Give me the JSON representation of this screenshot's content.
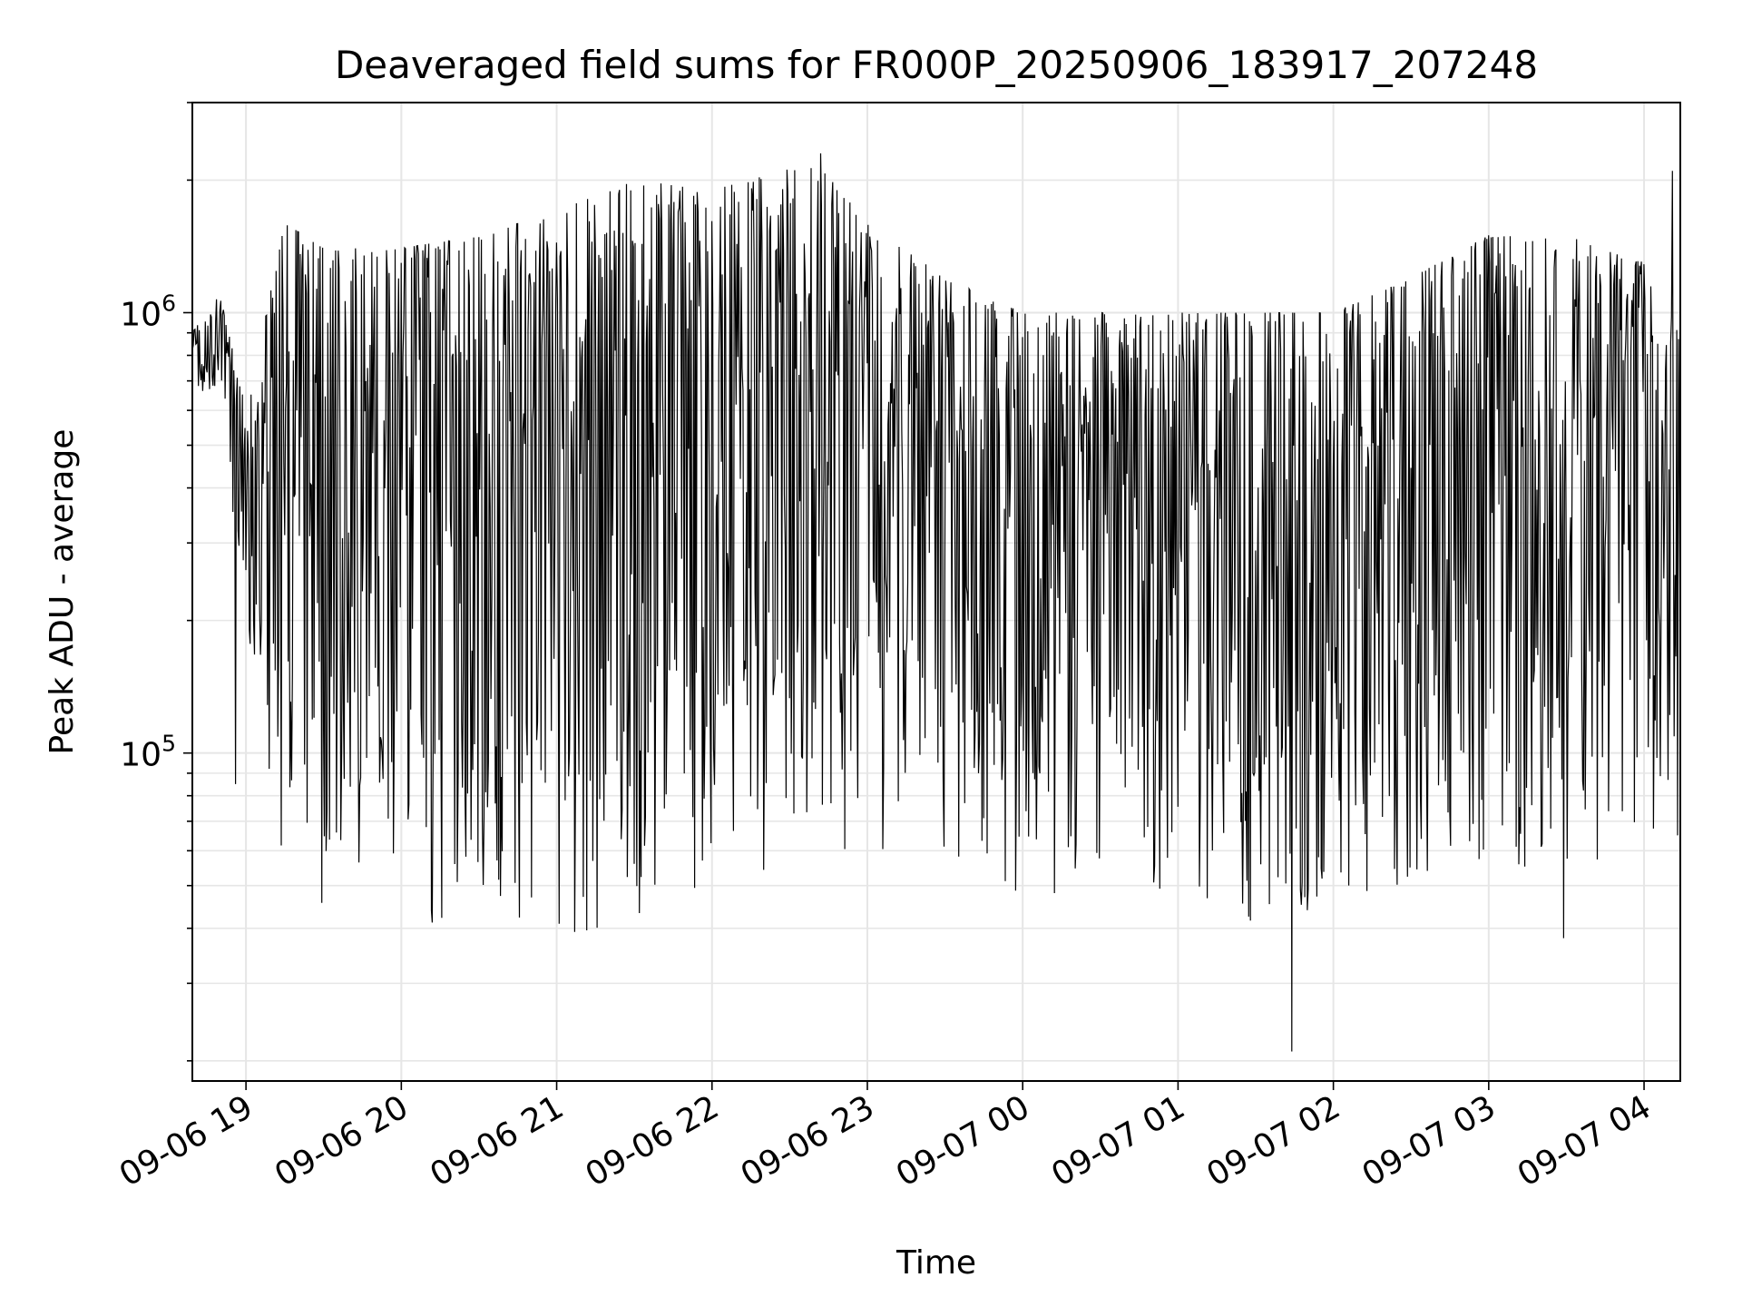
{
  "chart_data": {
    "type": "line",
    "title": "Deaveraged field sums for FR000P_20250906_183917_207248",
    "xlabel": "Time",
    "ylabel": "Peak ADU - average",
    "yscale": "log",
    "ylim": [
      18000,
      3000000
    ],
    "xlim": [
      "2025-09-06 18:39:17",
      "2025-09-07 04:14:00"
    ],
    "x_ticks": [
      "09-06 19",
      "09-06 20",
      "09-06 21",
      "09-06 22",
      "09-06 23",
      "09-07 00",
      "09-07 01",
      "09-07 02",
      "09-07 03",
      "09-07 04"
    ],
    "y_ticks": [
      {
        "value": 100000,
        "base": "10",
        "exp": "5"
      },
      {
        "value": 1000000,
        "base": "10",
        "exp": "6"
      }
    ],
    "grid": true,
    "line_color": "#000000",
    "grid_color": "#e6e6e6",
    "envelope": [
      {
        "t": "2025-09-06 18:39",
        "top": 900000,
        "bottom": 700000
      },
      {
        "t": "2025-09-06 18:50",
        "top": 1100000,
        "bottom": 600000
      },
      {
        "t": "2025-09-06 19:00",
        "top": 600000,
        "bottom": 150000
      },
      {
        "t": "2025-09-06 19:15",
        "top": 1600000,
        "bottom": 55000
      },
      {
        "t": "2025-09-06 19:30",
        "top": 1400000,
        "bottom": 40000
      },
      {
        "t": "2025-09-06 20:00",
        "top": 1400000,
        "bottom": 42000
      },
      {
        "t": "2025-09-06 20:30",
        "top": 1500000,
        "bottom": 40000
      },
      {
        "t": "2025-09-06 21:00",
        "top": 1700000,
        "bottom": 38000
      },
      {
        "t": "2025-09-06 21:30",
        "top": 2000000,
        "bottom": 40000
      },
      {
        "t": "2025-09-06 22:00",
        "top": 1900000,
        "bottom": 45000
      },
      {
        "t": "2025-09-06 22:40",
        "top": 2200000,
        "bottom": 60000
      },
      {
        "t": "2025-09-06 23:00",
        "top": 1600000,
        "bottom": 55000
      },
      {
        "t": "2025-09-06 23:30",
        "top": 1200000,
        "bottom": 50000
      },
      {
        "t": "2025-09-07 00:00",
        "top": 1000000,
        "bottom": 45000
      },
      {
        "t": "2025-09-07 00:30",
        "top": 1000000,
        "bottom": 50000
      },
      {
        "t": "2025-09-07 01:00",
        "top": 1000000,
        "bottom": 45000
      },
      {
        "t": "2025-09-07 01:30",
        "top": 1000000,
        "bottom": 40000
      },
      {
        "t": "2025-09-07 02:00",
        "top": 1000000,
        "bottom": 45000
      },
      {
        "t": "2025-09-07 02:30",
        "top": 1200000,
        "bottom": 50000
      },
      {
        "t": "2025-09-07 03:00",
        "top": 1500000,
        "bottom": 50000
      },
      {
        "t": "2025-09-07 03:30",
        "top": 1500000,
        "bottom": 55000
      },
      {
        "t": "2025-09-07 04:00",
        "top": 1300000,
        "bottom": 60000
      },
      {
        "t": "2025-09-07 04:14",
        "top": 900000,
        "bottom": 80000
      }
    ],
    "notable_points": [
      {
        "t": "2025-09-06 18:56",
        "y": 85000
      },
      {
        "t": "2025-09-06 22:42",
        "y": 2300000
      },
      {
        "t": "2025-09-07 01:44",
        "y": 21000
      },
      {
        "t": "2025-09-07 03:29",
        "y": 38000
      },
      {
        "t": "2025-09-07 04:11",
        "y": 2100000
      },
      {
        "t": "2025-09-07 04:13",
        "y": 65000
      }
    ],
    "sample_interval_seconds": 20
  }
}
